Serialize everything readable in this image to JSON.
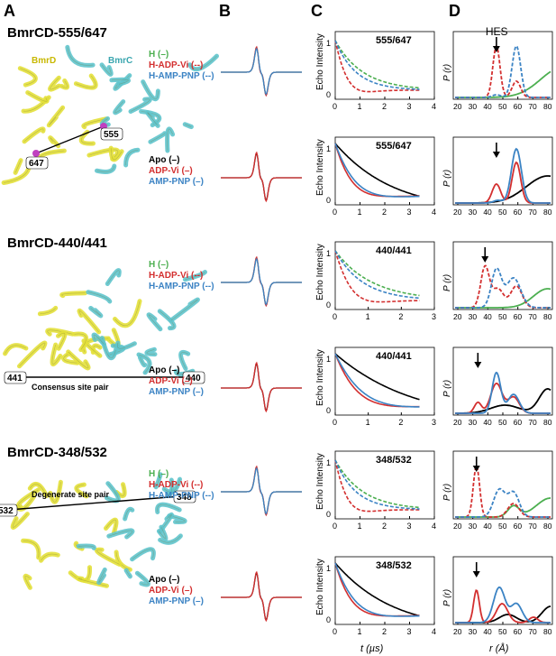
{
  "panel_letters": [
    "A",
    "B",
    "C",
    "D"
  ],
  "colors": {
    "H": "#4caf50",
    "ADP": "#d32f2f",
    "AMP": "#3b83c4",
    "Apo": "#000000",
    "bmrD": "#e3e03a",
    "bmrC": "#5fc4cc",
    "spin": "#c040c0"
  },
  "rows": [
    {
      "title": "BmrCD-555/647",
      "subunit_d": "BmrD",
      "subunit_c": "BmrC",
      "site_a": "647",
      "site_b": "555",
      "site_note": "",
      "hes_label": "HES",
      "legend_top": [
        {
          "text": "H (–)",
          "color": "#4caf50"
        },
        {
          "text": "H-ADP-Vi (--)",
          "color": "#d32f2f"
        },
        {
          "text": "H-AMP-PNP (--)",
          "color": "#3b83c4"
        }
      ],
      "legend_bottom": [
        {
          "text": "Apo (–)",
          "color": "#000000"
        },
        {
          "text": "ADP-Vi (–)",
          "color": "#d32f2f"
        },
        {
          "text": "AMP-PNP (–)",
          "color": "#3b83c4"
        }
      ],
      "label_C": "555/647",
      "c_xticks": [
        "0",
        "1",
        "2",
        "3",
        "4"
      ]
    },
    {
      "title": "BmrCD-440/441",
      "subunit_d": "",
      "subunit_c": "",
      "site_a": "441",
      "site_b": "440",
      "site_note": "Consensus site pair",
      "hes_label": "",
      "legend_top": [
        {
          "text": "H (–)",
          "color": "#4caf50"
        },
        {
          "text": "H-ADP-Vi (--)",
          "color": "#d32f2f"
        },
        {
          "text": "H-AMP-PNP (--)",
          "color": "#3b83c4"
        }
      ],
      "legend_bottom": [
        {
          "text": "Apo (–)",
          "color": "#000000"
        },
        {
          "text": "ADP-Vi (–)",
          "color": "#d32f2f"
        },
        {
          "text": "AMP-PNP (–)",
          "color": "#3b83c4"
        }
      ],
      "label_C": "440/441",
      "c_xticks": [
        "0",
        "1",
        "2",
        "3"
      ]
    },
    {
      "title": "BmrCD-348/532",
      "subunit_d": "",
      "subunit_c": "",
      "site_a": "532",
      "site_b": "348",
      "site_note": "Degenerate site pair",
      "hes_label": "",
      "legend_top": [
        {
          "text": "H (–)",
          "color": "#4caf50"
        },
        {
          "text": "H-ADP-Vi (--)",
          "color": "#d32f2f"
        },
        {
          "text": "H-AMP-PNP (--)",
          "color": "#3b83c4"
        }
      ],
      "legend_bottom": [
        {
          "text": "Apo (–)",
          "color": "#000000"
        },
        {
          "text": "ADP-Vi (–)",
          "color": "#d32f2f"
        },
        {
          "text": "AMP-PNP (–)",
          "color": "#3b83c4"
        }
      ],
      "label_C": "348/532",
      "c_xticks": [
        "0",
        "1",
        "2",
        "3",
        "4"
      ]
    }
  ],
  "axis": {
    "c_ylabel": "Echo Intensity",
    "c_xlabel": "t (µs)",
    "c_y0": "0",
    "c_y1": "1",
    "d_ylabel": "P (r)",
    "d_xlabel": "r (Å)",
    "d_xticks": [
      "20",
      "30",
      "40",
      "50",
      "60",
      "70",
      "80"
    ]
  }
}
